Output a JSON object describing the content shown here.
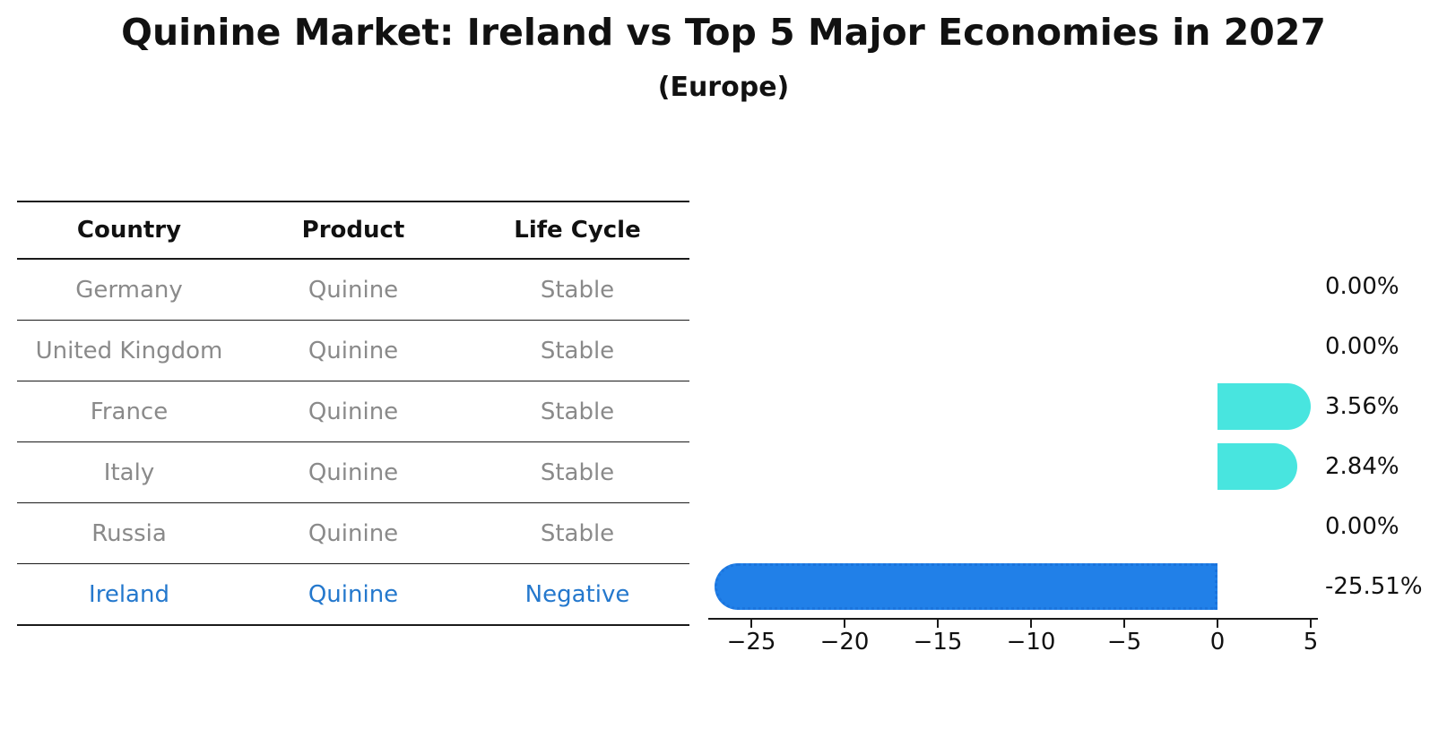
{
  "title": "Quinine Market: Ireland vs Top 5 Major Economies in 2027",
  "subtitle": "(Europe)",
  "table": {
    "headers": [
      "Country",
      "Product",
      "Life Cycle"
    ],
    "rows": [
      {
        "country": "Germany",
        "product": "Quinine",
        "life_cycle": "Stable",
        "highlight": false
      },
      {
        "country": "United Kingdom",
        "product": "Quinine",
        "life_cycle": "Stable",
        "highlight": false
      },
      {
        "country": "France",
        "product": "Quinine",
        "life_cycle": "Stable",
        "highlight": false
      },
      {
        "country": "Italy",
        "product": "Quinine",
        "life_cycle": "Stable",
        "highlight": false
      },
      {
        "country": "Russia",
        "product": "Quinine",
        "life_cycle": "Stable",
        "highlight": false
      },
      {
        "country": "Ireland",
        "product": "Quinine",
        "life_cycle": "Negative",
        "highlight": true
      }
    ]
  },
  "chart_data": {
    "type": "bar",
    "orientation": "horizontal",
    "title": "Quinine Market: Ireland vs Top 5 Major Economies in 2027 (Europe)",
    "categories": [
      "Germany",
      "United Kingdom",
      "France",
      "Italy",
      "Russia",
      "Ireland"
    ],
    "values": [
      0.0,
      0.0,
      3.56,
      2.84,
      0.0,
      -25.51
    ],
    "value_labels": [
      "0.00%",
      "0.00%",
      "3.56%",
      "2.84%",
      "0.00%",
      "-25.51%"
    ],
    "xlabel": "",
    "ylabel": "",
    "x_ticks": [
      -25,
      -20,
      -15,
      -10,
      -5,
      0,
      5
    ],
    "x_tick_labels": [
      "−25",
      "−20",
      "−15",
      "−10",
      "−5",
      "0",
      "5"
    ],
    "xlim": [
      -27.3,
      5.4
    ],
    "grid": false,
    "legend": "none",
    "colors": {
      "positive_bar": "#48E5DF",
      "negative_bar": "#2180E8",
      "negative_bar_border": "#1b74dd",
      "highlight_text": "#2478CD",
      "row_text": "#8a8a8a",
      "text": "#111111"
    }
  }
}
